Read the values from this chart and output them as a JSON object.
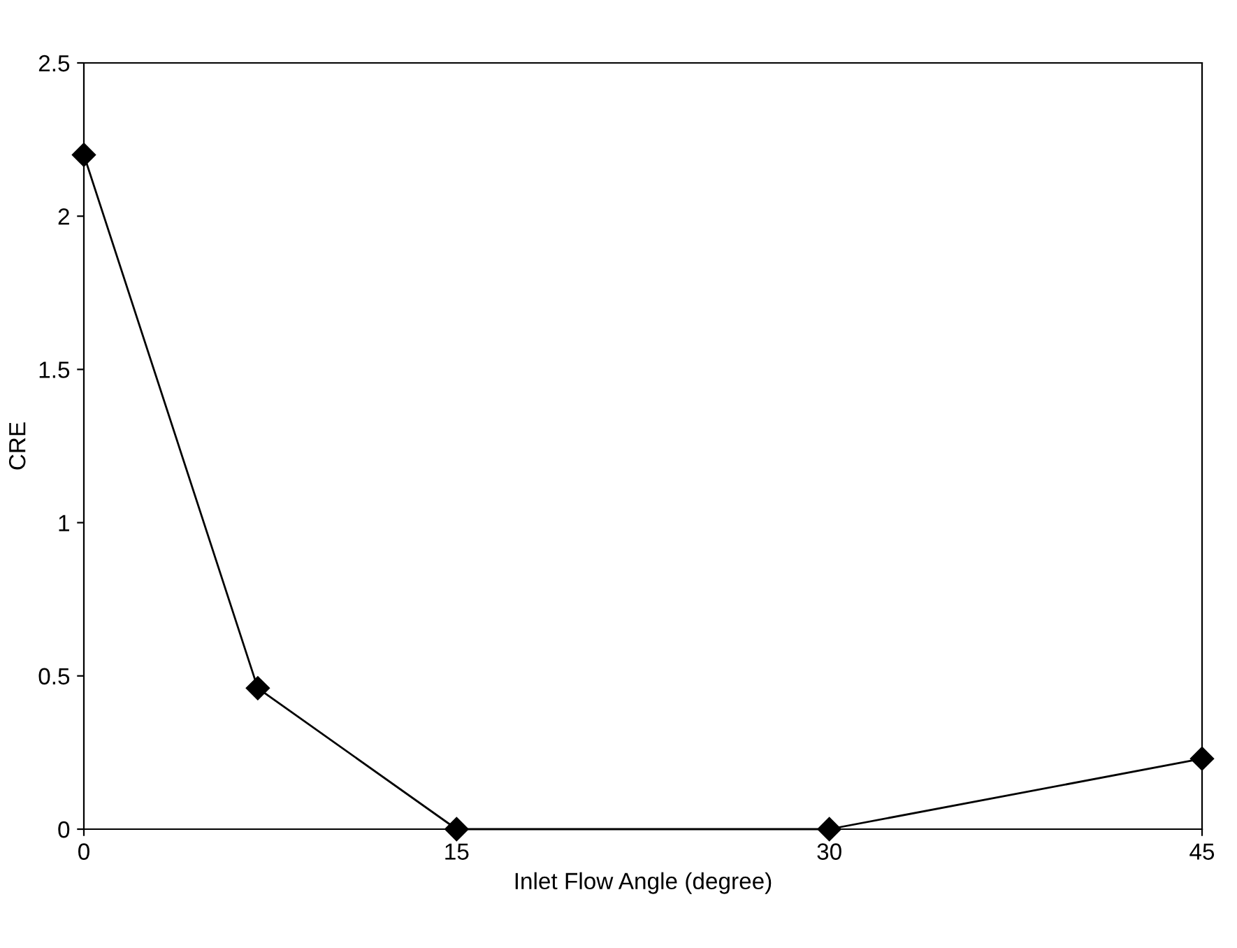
{
  "chart_data": {
    "type": "line",
    "xlabel": "Inlet Flow Angle (degree)",
    "ylabel": "CRE",
    "x": [
      0,
      7,
      15,
      30,
      45
    ],
    "series": [
      {
        "color": "#000000",
        "values": [
          2.2,
          0.46,
          0,
          0,
          0.23
        ]
      }
    ],
    "xlim": [
      0,
      45
    ],
    "xticks": [
      0,
      15,
      30,
      45
    ],
    "ylim": [
      0,
      2.5
    ],
    "yticks": [
      0,
      0.5,
      1,
      1.5,
      2,
      2.5
    ],
    "marker": "diamond",
    "line_style": "solid",
    "grid": false,
    "legend": false
  }
}
